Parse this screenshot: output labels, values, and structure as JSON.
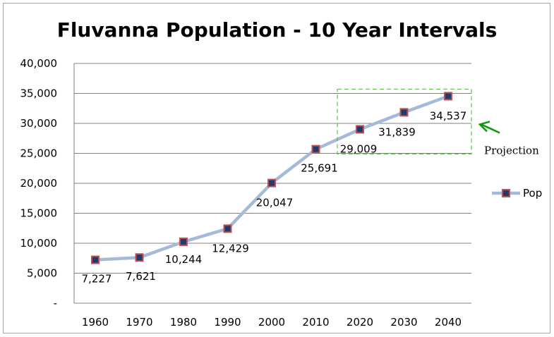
{
  "chart_data": {
    "type": "line",
    "title": "Fluvanna Population - 10 Year Intervals",
    "xlabel": "",
    "ylabel": "",
    "categories": [
      "1960",
      "1970",
      "1980",
      "1990",
      "2000",
      "2010",
      "2020",
      "2030",
      "2040"
    ],
    "series": [
      {
        "name": "Pop",
        "values": [
          7227,
          7621,
          10244,
          12429,
          20047,
          25691,
          29009,
          31839,
          34537
        ],
        "labels": [
          "7,227",
          "7,621",
          "10,244",
          "12,429",
          "20,047",
          "25,691",
          "29,009",
          "31,839",
          "34,537"
        ]
      }
    ],
    "ylim": [
      0,
      40000
    ],
    "yticks": [
      0,
      5000,
      10000,
      15000,
      20000,
      25000,
      30000,
      35000,
      40000
    ],
    "ytick_labels": [
      "-",
      "5,000",
      "10,000",
      "15,000",
      "20,000",
      "25,000",
      "30,000",
      "35,000",
      "40,000"
    ],
    "grid": true,
    "legend_position": "right",
    "colors": {
      "line": "#a5b9d8",
      "marker_fill": "#1f3a6e",
      "marker_edge": "#c0504d",
      "gridline": "#808080",
      "projection_box": "#66bb55",
      "projection_arrow": "#119911"
    },
    "annotation": {
      "text": "Projection",
      "categories": [
        "2020",
        "2030",
        "2040"
      ]
    }
  }
}
